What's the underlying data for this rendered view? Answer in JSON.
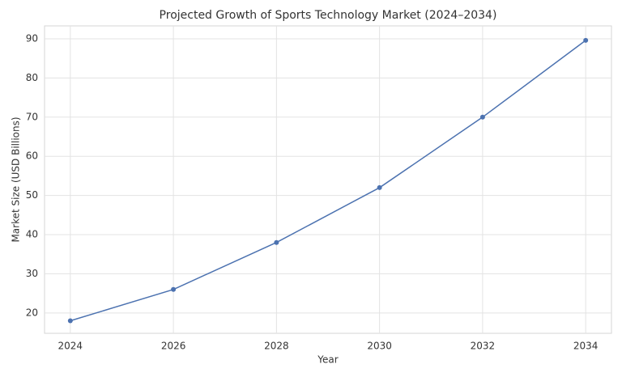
{
  "chart_data": {
    "type": "line",
    "title": "Projected Growth of Sports Technology Market (2024–2034)",
    "x_label": "Year",
    "y_label": "Market Size (USD Billions)",
    "x": [
      2024,
      2026,
      2028,
      2030,
      2032,
      2034
    ],
    "series": [
      {
        "name": "Market Size",
        "color": "#4c72b0",
        "values": [
          18,
          26,
          38,
          52,
          70,
          89.6
        ]
      }
    ],
    "xlim": [
      2023.5,
      2034.5
    ],
    "xticks": [
      2024,
      2026,
      2028,
      2030,
      2032,
      2034
    ],
    "ylim": [
      14.8,
      93.3
    ],
    "yticks": [
      20,
      30,
      40,
      50,
      60,
      70,
      80,
      90
    ],
    "grid": true,
    "markers": true
  }
}
